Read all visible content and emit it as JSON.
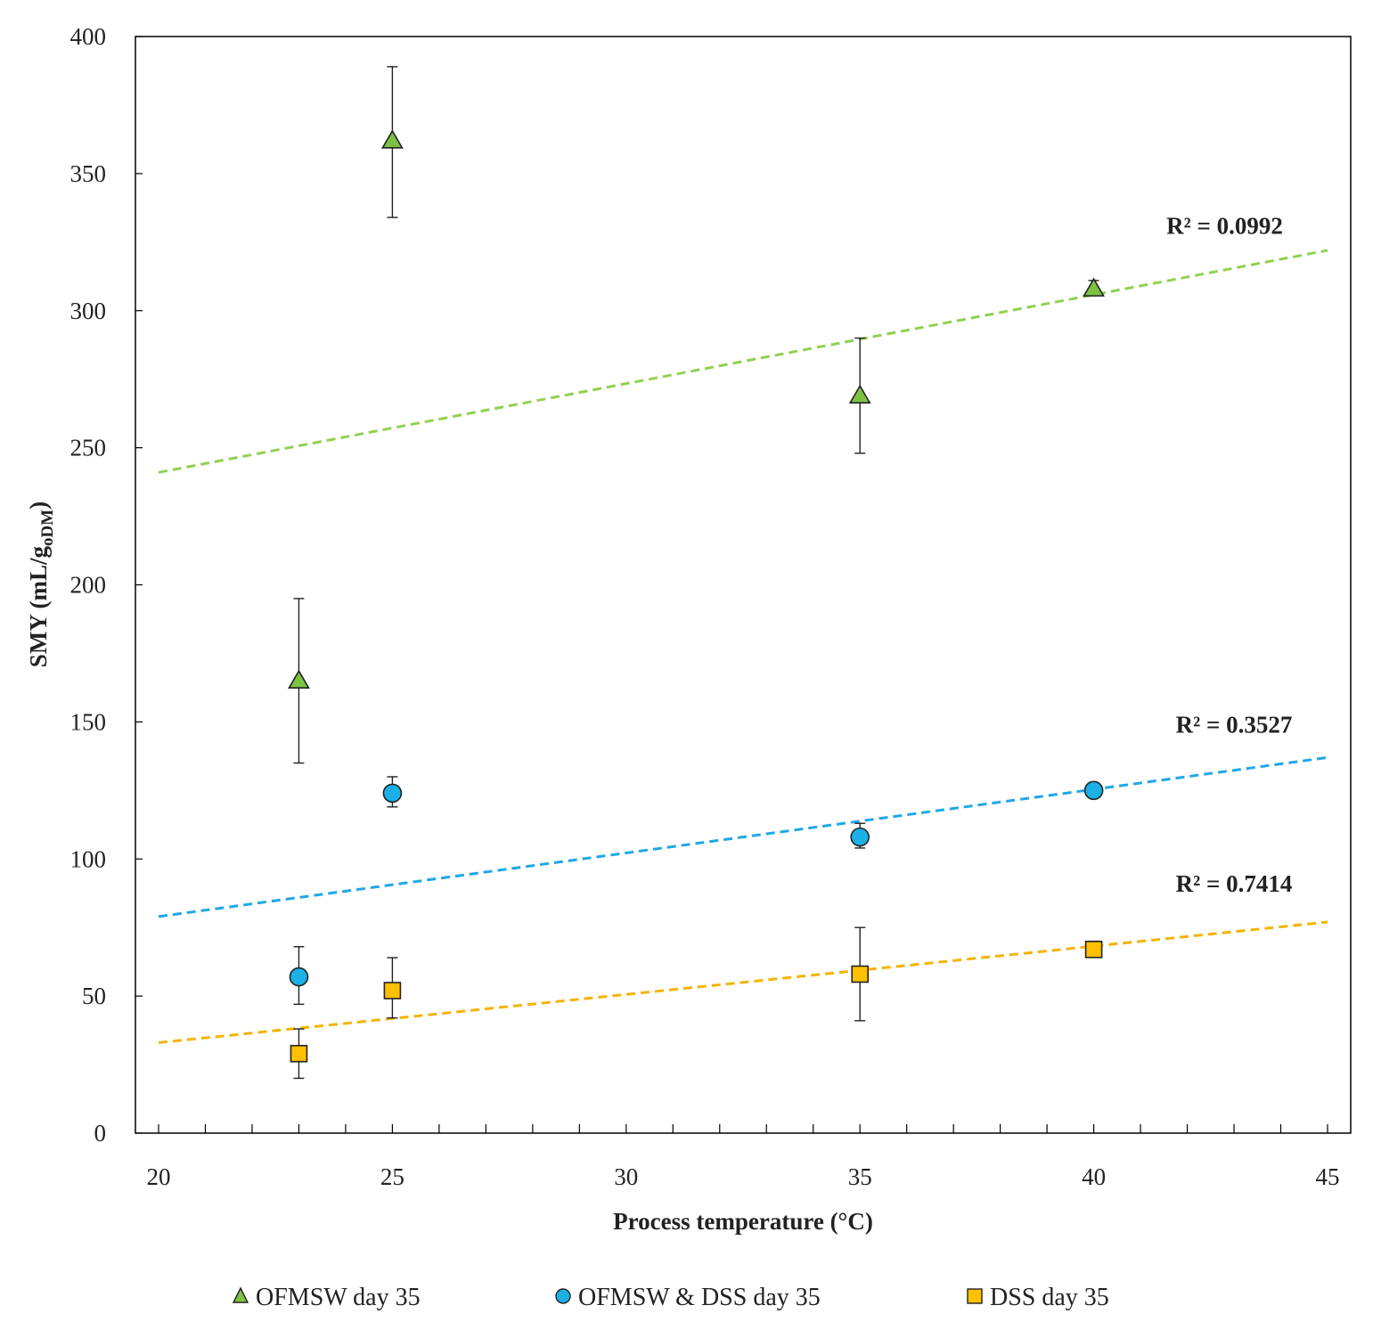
{
  "chart_data": {
    "type": "scatter",
    "title": "",
    "xlabel": "Process temperature (°C)",
    "ylabel": {
      "main": "SMY (mL/g",
      "sub": "oDM",
      "close": ")"
    },
    "xlim": [
      20,
      45
    ],
    "ylim": [
      0,
      400
    ],
    "xticks": [
      20,
      25,
      30,
      35,
      40,
      45
    ],
    "yticks": [
      0,
      50,
      100,
      150,
      200,
      250,
      300,
      350,
      400
    ],
    "x_minor_step": 1,
    "grid": false,
    "legend_position": "bottom",
    "series": [
      {
        "name": "OFMSW day 35",
        "marker": "triangle",
        "color": "#7dc243",
        "points": [
          {
            "x": 23,
            "y": 165,
            "err_low": 135,
            "err_high": 195
          },
          {
            "x": 25,
            "y": 362,
            "err_low": 334,
            "err_high": 389
          },
          {
            "x": 35,
            "y": 269,
            "err_low": 248,
            "err_high": 290
          },
          {
            "x": 40,
            "y": 308,
            "err_low": 306,
            "err_high": 311
          }
        ],
        "trendline": {
          "x0": 20,
          "y0": 241,
          "x1": 45,
          "y1": 322,
          "color": "#92d050"
        },
        "r2": {
          "label": "R² = 0.0992",
          "x": 42.8,
          "y": 328
        }
      },
      {
        "name": "OFMSW & DSS day 35",
        "marker": "circle",
        "color": "#1bb0e6",
        "points": [
          {
            "x": 23,
            "y": 57,
            "err_low": 47,
            "err_high": 68
          },
          {
            "x": 25,
            "y": 124,
            "err_low": 119,
            "err_high": 130
          },
          {
            "x": 35,
            "y": 108,
            "err_low": 104,
            "err_high": 113
          },
          {
            "x": 40,
            "y": 125,
            "err_low": 124,
            "err_high": 126
          }
        ],
        "trendline": {
          "x0": 20,
          "y0": 79,
          "x1": 45,
          "y1": 137,
          "color": "#1fa8e6"
        },
        "r2": {
          "label": "R² = 0.3527",
          "x": 43.0,
          "y": 146
        }
      },
      {
        "name": "DSS day 35",
        "marker": "square",
        "color": "#ffc000",
        "points": [
          {
            "x": 23,
            "y": 29,
            "err_low": 20,
            "err_high": 38
          },
          {
            "x": 25,
            "y": 52,
            "err_low": 42,
            "err_high": 64
          },
          {
            "x": 35,
            "y": 58,
            "err_low": 41,
            "err_high": 75
          },
          {
            "x": 40,
            "y": 67,
            "err_low": 66,
            "err_high": 70
          }
        ],
        "trendline": {
          "x0": 20,
          "y0": 33,
          "x1": 45,
          "y1": 77,
          "color": "#f4b400"
        },
        "r2": {
          "label": "R² = 0.7414",
          "x": 43.0,
          "y": 88
        }
      }
    ]
  }
}
